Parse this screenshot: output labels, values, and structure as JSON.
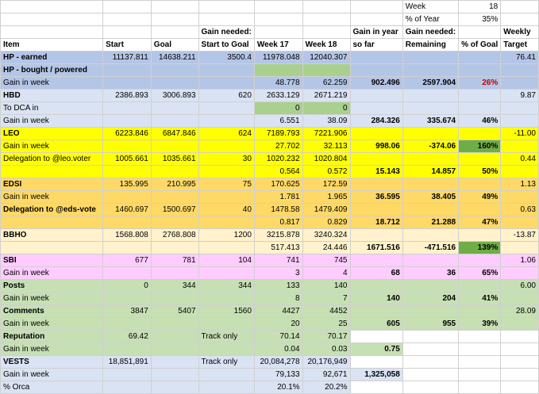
{
  "header": {
    "week_label": "Week",
    "week_value": "18",
    "year_label": "% of Year",
    "year_value": "35%",
    "columns": [
      "Item",
      "Start",
      "Goal",
      "Gain needed:",
      "Start to Goal",
      "Week 17",
      "Week 18",
      "Gain in year",
      "so far",
      "Gain needed:",
      "Remaining",
      "% of Goal",
      "Weekly",
      "Target"
    ]
  },
  "rows": [
    [
      "HP - earned",
      "11137.811",
      "14638.211",
      "3500.4",
      "11978.048",
      "12040.307",
      "",
      "",
      "",
      "76.41"
    ],
    [
      "HP - bought / powered",
      "",
      "",
      "",
      "",
      "",
      "",
      "",
      "",
      ""
    ],
    [
      "Gain in week",
      "",
      "",
      "",
      "48.778",
      "62.259",
      "902.496",
      "2597.904",
      "26%",
      ""
    ],
    [
      "HBD",
      "2386.893",
      "3006.893",
      "620",
      "2633.129",
      "2671.219",
      "",
      "",
      "",
      "9.87"
    ],
    [
      "To DCA in",
      "",
      "",
      "",
      "0",
      "0",
      "",
      "",
      "",
      ""
    ],
    [
      "Gain in week",
      "",
      "",
      "",
      "6.551",
      "38.09",
      "284.326",
      "335.674",
      "46%",
      ""
    ],
    [
      "LEO",
      "6223.846",
      "6847.846",
      "624",
      "7189.793",
      "7221.906",
      "",
      "",
      "",
      "-11.00"
    ],
    [
      "Gain in week",
      "",
      "",
      "",
      "27.702",
      "32.113",
      "998.06",
      "-374.06",
      "160%",
      ""
    ],
    [
      "Delegation to @leo.voter",
      "1005.661",
      "1035.661",
      "30",
      "1020.232",
      "1020.804",
      "",
      "",
      "",
      "0.44"
    ],
    [
      "",
      "",
      "",
      "",
      "0.564",
      "0.572",
      "15.143",
      "14.857",
      "50%",
      ""
    ],
    [
      "EDSI",
      "135.995",
      "210.995",
      "75",
      "170.625",
      "172.59",
      "",
      "",
      "",
      "1.13"
    ],
    [
      "Gain in week",
      "",
      "",
      "",
      "1.781",
      "1.965",
      "36.595",
      "38.405",
      "49%",
      ""
    ],
    [
      "Delegation to @eds-vote",
      "1460.697",
      "1500.697",
      "40",
      "1478.58",
      "1479.409",
      "",
      "",
      "",
      "0.63"
    ],
    [
      "",
      "",
      "",
      "",
      "0.817",
      "0.829",
      "18.712",
      "21.288",
      "47%",
      ""
    ],
    [
      "BBHO",
      "1568.808",
      "2768.808",
      "1200",
      "3215.878",
      "3240.324",
      "",
      "",
      "",
      "-13.87"
    ],
    [
      "",
      "",
      "",
      "",
      "517.413",
      "24.446",
      "1671.516",
      "-471.516",
      "139%",
      ""
    ],
    [
      "SBI",
      "677",
      "781",
      "104",
      "741",
      "745",
      "",
      "",
      "",
      "1.06"
    ],
    [
      "Gain in week",
      "",
      "",
      "",
      "3",
      "4",
      "68",
      "36",
      "65%",
      ""
    ],
    [
      "Posts",
      "0",
      "344",
      "344",
      "133",
      "140",
      "",
      "",
      "",
      "6.00"
    ],
    [
      "Gain in week",
      "",
      "",
      "",
      "8",
      "7",
      "140",
      "204",
      "41%",
      ""
    ],
    [
      "Comments",
      "3847",
      "5407",
      "1560",
      "4427",
      "4452",
      "",
      "",
      "",
      "28.09"
    ],
    [
      "Gain in week",
      "",
      "",
      "",
      "20",
      "25",
      "605",
      "955",
      "39%",
      ""
    ],
    [
      "Reputation",
      "69.42",
      "",
      "Track only",
      "70.14",
      "70.17",
      "",
      "",
      "",
      ""
    ],
    [
      "Gain in week",
      "",
      "",
      "",
      "0.04",
      "0.03",
      "0.75",
      "",
      "",
      ""
    ],
    [
      "VESTS",
      "18,851,891",
      "",
      "Track only",
      "20,084,278",
      "20,176,949",
      "",
      "",
      "",
      ""
    ],
    [
      "Gain in week",
      "",
      "",
      "",
      "79,133",
      "92,671",
      "1,325,058",
      "",
      "",
      ""
    ],
    [
      "% Orca",
      "",
      "",
      "",
      "20.1%",
      "20.2%",
      "",
      "",
      "",
      ""
    ]
  ]
}
